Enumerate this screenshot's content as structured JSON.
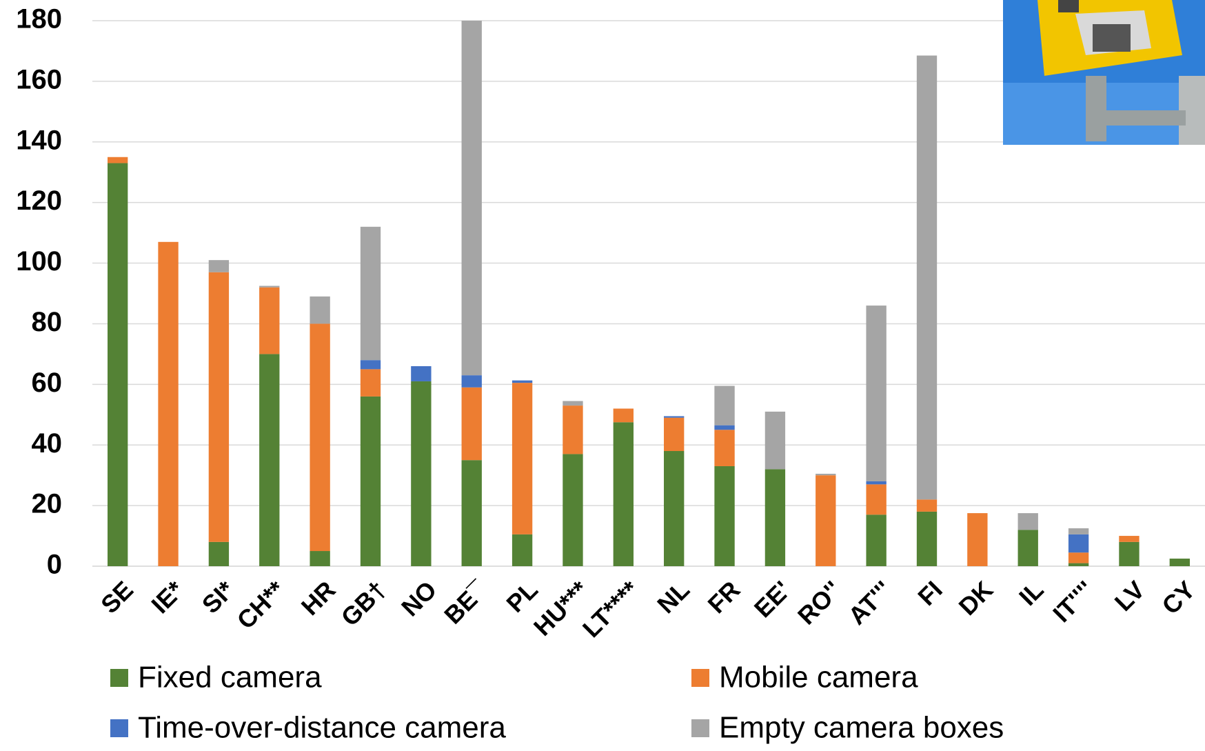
{
  "chart_data": {
    "type": "stacked_bar",
    "categories": [
      "SE",
      "IE*",
      "SI*",
      "CH**",
      "HR",
      "GB†",
      "NO",
      "BE¯",
      "PL",
      "HU***",
      "LT****",
      "NL",
      "FR",
      "EE'",
      "RO''",
      "AT'''",
      "FI",
      "DK",
      "IL",
      "IT''''",
      "LV",
      "CY"
    ],
    "series": [
      {
        "name": "Fixed camera",
        "color": "#548235",
        "values": [
          133,
          0,
          8,
          70,
          5,
          56,
          61,
          35,
          10.5,
          37,
          47.5,
          38,
          33,
          32,
          0,
          17,
          18,
          0,
          12,
          1,
          8,
          2.5
        ]
      },
      {
        "name": "Mobile camera",
        "color": "#ed7d31",
        "values": [
          2,
          107,
          89,
          22,
          75,
          9,
          0,
          24,
          50,
          16,
          4.5,
          11,
          12,
          0,
          30,
          10,
          4,
          17.5,
          0,
          3.5,
          2,
          0
        ]
      },
      {
        "name": "Time-over-distance camera",
        "color": "#4472c4",
        "values": [
          0,
          0,
          0,
          0,
          0,
          3,
          5,
          4,
          0.8,
          0,
          0,
          0.5,
          1.5,
          0,
          0,
          1,
          0,
          0,
          0,
          6,
          0,
          0
        ]
      },
      {
        "name": "Empty camera boxes",
        "color": "#a5a5a5",
        "values": [
          0,
          0,
          4,
          0.5,
          9,
          44,
          0,
          117,
          0,
          1.5,
          0,
          0,
          13,
          19,
          0.5,
          58,
          146.5,
          0,
          5.5,
          2,
          0,
          0
        ]
      }
    ],
    "ylim": [
      0,
      180
    ],
    "yticks": [
      0,
      20,
      40,
      60,
      80,
      100,
      120,
      140,
      160,
      180
    ],
    "grid": true
  }
}
